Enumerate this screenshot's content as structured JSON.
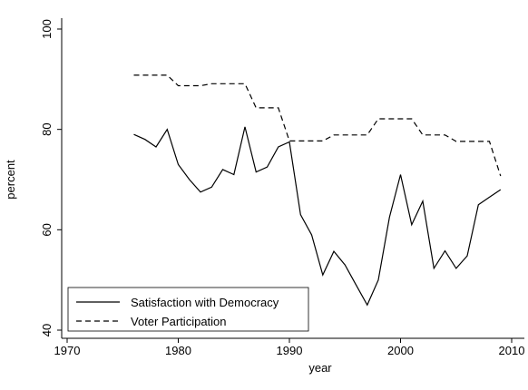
{
  "chart_data": {
    "type": "line",
    "title": "",
    "xlabel": "year",
    "ylabel": "percent",
    "xlim": [
      1970,
      2010
    ],
    "ylim": [
      40,
      100
    ],
    "x_ticks": [
      1970,
      1980,
      1990,
      2000,
      2010
    ],
    "y_ticks": [
      40,
      60,
      80,
      100
    ],
    "grid": false,
    "legend_position": "bottom-left",
    "series": [
      {
        "name": "Satisfaction with Democracy",
        "style": "solid",
        "color": "#000000",
        "x": [
          1976,
          1977,
          1978,
          1979,
          1980,
          1981,
          1982,
          1983,
          1984,
          1985,
          1986,
          1987,
          1988,
          1989,
          1990,
          1991,
          1992,
          1993,
          1994,
          1995,
          1996,
          1997,
          1998,
          1999,
          2000,
          2001,
          2002,
          2003,
          2004,
          2005,
          2006,
          2007,
          2008,
          2009
        ],
        "y": [
          79,
          78,
          76.5,
          80,
          73,
          70,
          67.5,
          68.5,
          72,
          71,
          80.5,
          71.5,
          72.5,
          76.5,
          77.5,
          63,
          59,
          51,
          55.7,
          53,
          49,
          45,
          50,
          62.5,
          71,
          61,
          65.7,
          52.3,
          55.8,
          52.3,
          54.8,
          65,
          66.5,
          68
        ]
      },
      {
        "name": "Voter Participation",
        "style": "dashed",
        "color": "#000000",
        "x": [
          1976,
          1977,
          1978,
          1979,
          1980,
          1981,
          1982,
          1983,
          1984,
          1985,
          1986,
          1987,
          1988,
          1989,
          1990,
          1991,
          1992,
          1993,
          1994,
          1995,
          1996,
          1997,
          1998,
          1999,
          2000,
          2001,
          2002,
          2003,
          2004,
          2005,
          2006,
          2007,
          2008,
          2009
        ],
        "y": [
          90.8,
          90.8,
          90.8,
          90.8,
          88.7,
          88.7,
          88.7,
          89.1,
          89.1,
          89.1,
          89.1,
          84.3,
          84.3,
          84.3,
          77.7,
          77.7,
          77.7,
          77.7,
          78.9,
          78.9,
          78.9,
          78.9,
          82.1,
          82.1,
          82.1,
          82.1,
          78.9,
          78.9,
          78.9,
          77.6,
          77.6,
          77.6,
          77.6,
          70.7
        ]
      }
    ]
  }
}
